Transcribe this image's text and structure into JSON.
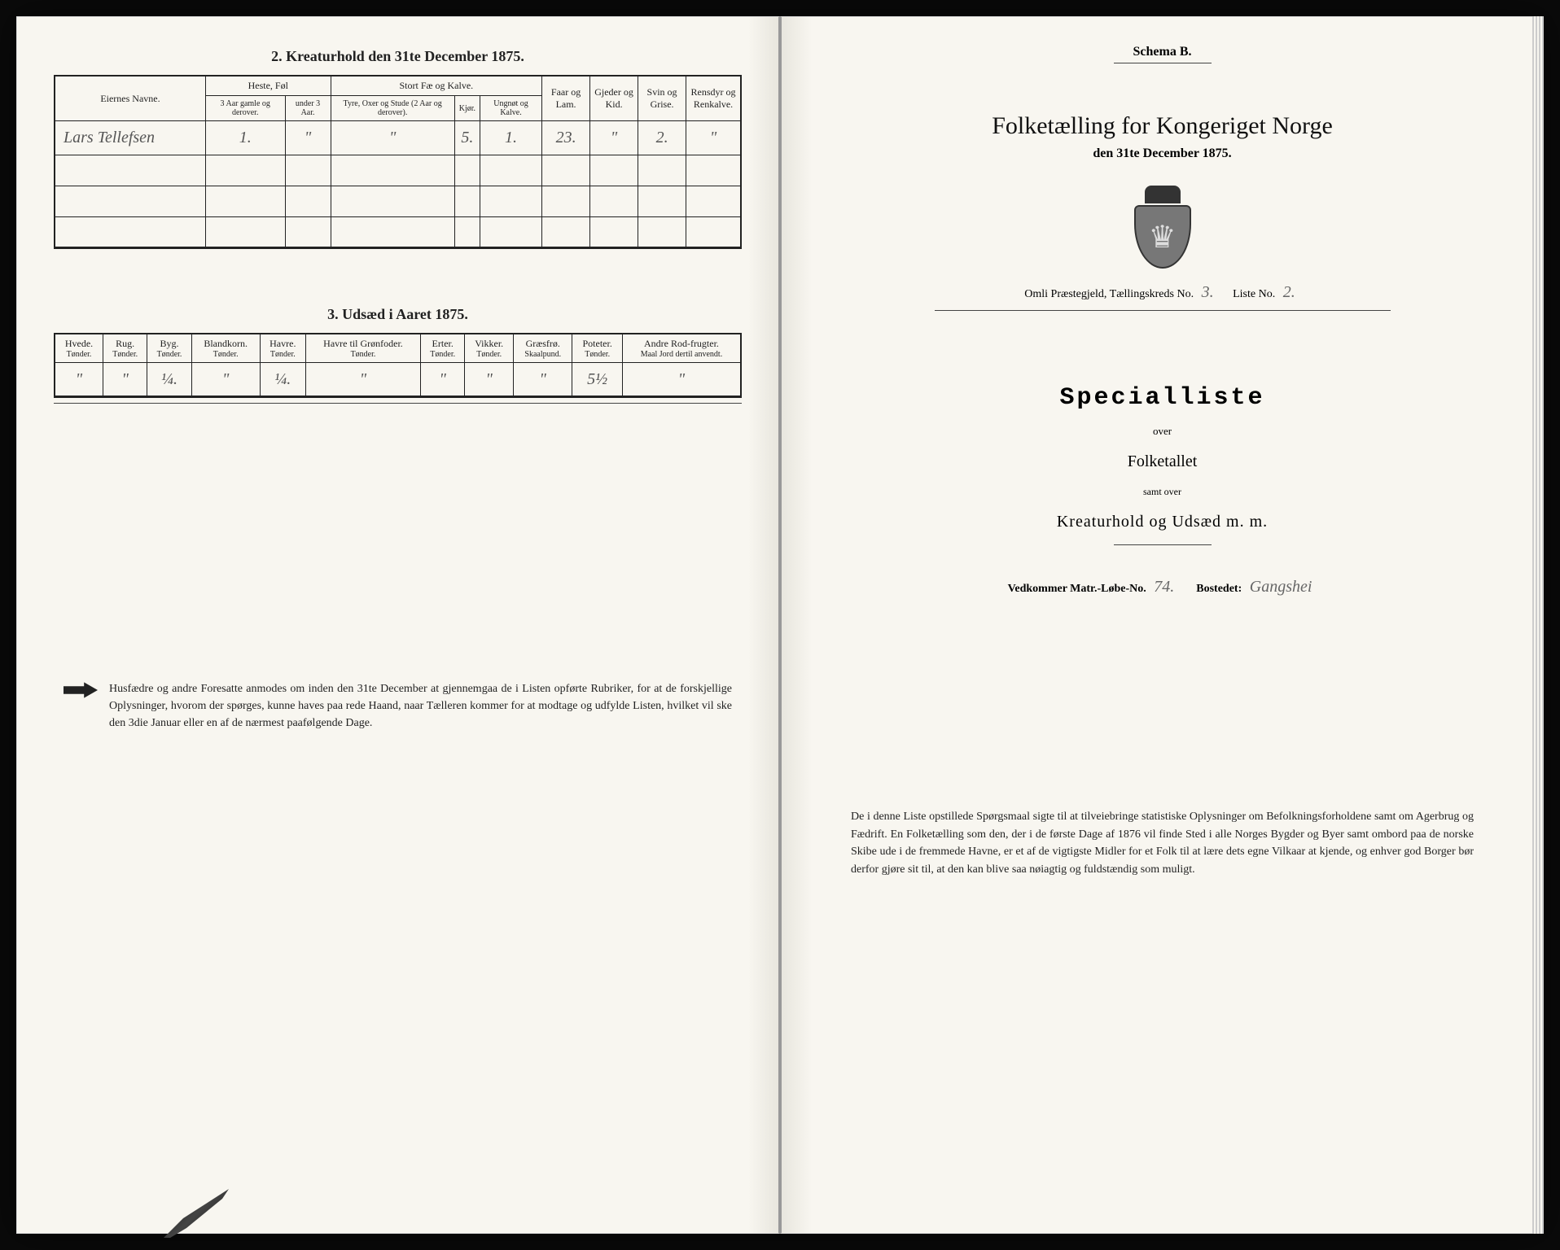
{
  "left": {
    "section2_title": "2.  Kreaturhold den 31te December 1875.",
    "section3_title": "3.  Udsæd i Aaret 1875.",
    "table2": {
      "type": "table",
      "colors": {
        "border": "#222222",
        "text": "#222222",
        "background": "#f8f6f0"
      },
      "header": {
        "eiernes_navne": "Eiernes Navne.",
        "heste_fol": "Heste, Føl",
        "heste_sub1": "3 Aar gamle og derover.",
        "heste_sub2": "under 3 Aar.",
        "stort_fae": "Stort Fæ og Kalve.",
        "fae_sub1": "Tyre, Oxer og Stude (2 Aar og derover).",
        "fae_sub2": "Kjør.",
        "fae_sub3": "Ungnøt og Kalve.",
        "faar": "Faar og Lam.",
        "gjeder": "Gjeder og Kid.",
        "svin": "Svin og Grise.",
        "ren": "Rensdyr og Renkalve."
      },
      "rows": [
        {
          "navn": "Lars Tellefsen",
          "heste1": "1.",
          "heste2": "\"",
          "fae1": "\"",
          "fae2": "5.",
          "fae3": "1.",
          "faar": "23.",
          "gjeder": "\"",
          "svin": "2.",
          "ren": "\""
        }
      ]
    },
    "table3": {
      "type": "table",
      "colors": {
        "border": "#222222",
        "text": "#222222",
        "background": "#f8f6f0"
      },
      "columns": [
        {
          "label": "Hvede.",
          "sub": "Tønder."
        },
        {
          "label": "Rug.",
          "sub": "Tønder."
        },
        {
          "label": "Byg.",
          "sub": "Tønder."
        },
        {
          "label": "Blandkorn.",
          "sub": "Tønder."
        },
        {
          "label": "Havre.",
          "sub": "Tønder."
        },
        {
          "label": "Havre til Grønfoder.",
          "sub": "Tønder."
        },
        {
          "label": "Erter.",
          "sub": "Tønder."
        },
        {
          "label": "Vikker.",
          "sub": "Tønder."
        },
        {
          "label": "Græsfrø.",
          "sub": "Skaalpund."
        },
        {
          "label": "Poteter.",
          "sub": "Tønder."
        },
        {
          "label": "Andre Rod-frugter.",
          "sub": "Maal Jord dertil anvendt."
        }
      ],
      "row": [
        "\"",
        "\"",
        "¼.",
        "\"",
        "¼.",
        "\"",
        "\"",
        "\"",
        "\"",
        "5½",
        "\""
      ]
    },
    "notice": "Husfædre og andre Foresatte anmodes om inden den 31te December at gjennemgaa de i Listen opførte Rubriker, for at de forskjellige Oplysninger, hvorom der spørges, kunne haves paa rede Haand, naar Tælleren kommer for at modtage og udfylde Listen, hvilket vil ske den 3die Januar eller en af de nærmest paafølgende Dage."
  },
  "right": {
    "schema": "Schema B.",
    "main_title": "Folketælling for Kongeriget Norge",
    "sub_title": "den 31te December 1875.",
    "district_prefix": "Omli Præstegjeld,  Tællingskreds No.",
    "district_no": "3.",
    "liste_label": "Liste No.",
    "liste_no": "2.",
    "specialliste": "Specialliste",
    "over": "over",
    "folketallet": "Folketallet",
    "samt": "samt over",
    "kreatur": "Kreaturhold og Udsæd m. m.",
    "vedkommer_label": "Vedkommer Matr.-Løbe-No.",
    "matr_no": "74.",
    "bostedet_label": "Bostedet:",
    "bostedet": "Gangshei",
    "paragraph": "De i denne Liste opstillede Spørgsmaal sigte til at tilveiebringe statistiske Oplysninger om Befolkningsforholdene samt om Agerbrug og Fædrift.  En Folketælling som den, der i de første Dage af 1876 vil finde Sted i alle Norges Bygder og Byer samt ombord paa de norske Skibe ude i de fremmede Havne, er et af de vigtigste Midler for et Folk til at lære dets egne Vilkaar at kjende, og enhver god Borger bør derfor gjøre sit til, at den kan blive saa nøiagtig og fuldstændig som muligt."
  }
}
